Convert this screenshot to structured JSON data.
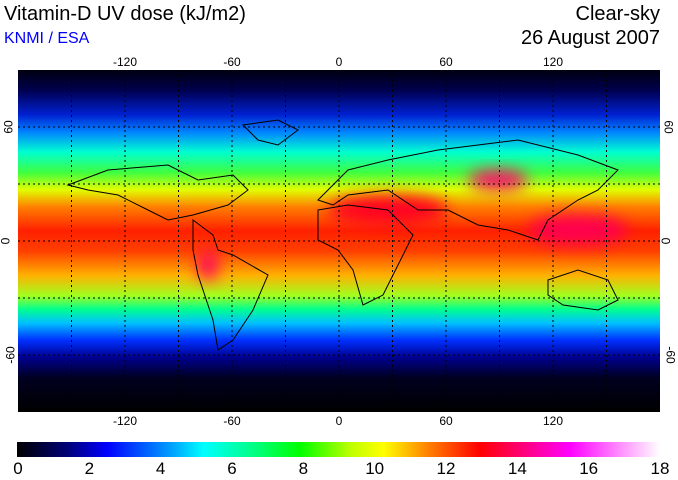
{
  "header": {
    "title": "Vitamin-D UV dose (kJ/m2)",
    "credit": "KNMI / ESA",
    "mode": "Clear-sky",
    "date": "26 August 2007"
  },
  "map": {
    "lon_ticks": [
      "-120",
      "-60",
      "0",
      "60",
      "120"
    ],
    "lat_ticks_left": [
      "60",
      "0",
      "-60"
    ],
    "lat_ticks_right": [
      "60",
      "0",
      "-60"
    ],
    "lon_range": [
      -180,
      180
    ],
    "lat_range": [
      -90,
      90
    ],
    "grid_spacing_deg": 30
  },
  "colorbar": {
    "labels": [
      "0",
      "2",
      "4",
      "6",
      "8",
      "10",
      "12",
      "14",
      "16",
      "18"
    ],
    "range": [
      0,
      18
    ]
  }
}
